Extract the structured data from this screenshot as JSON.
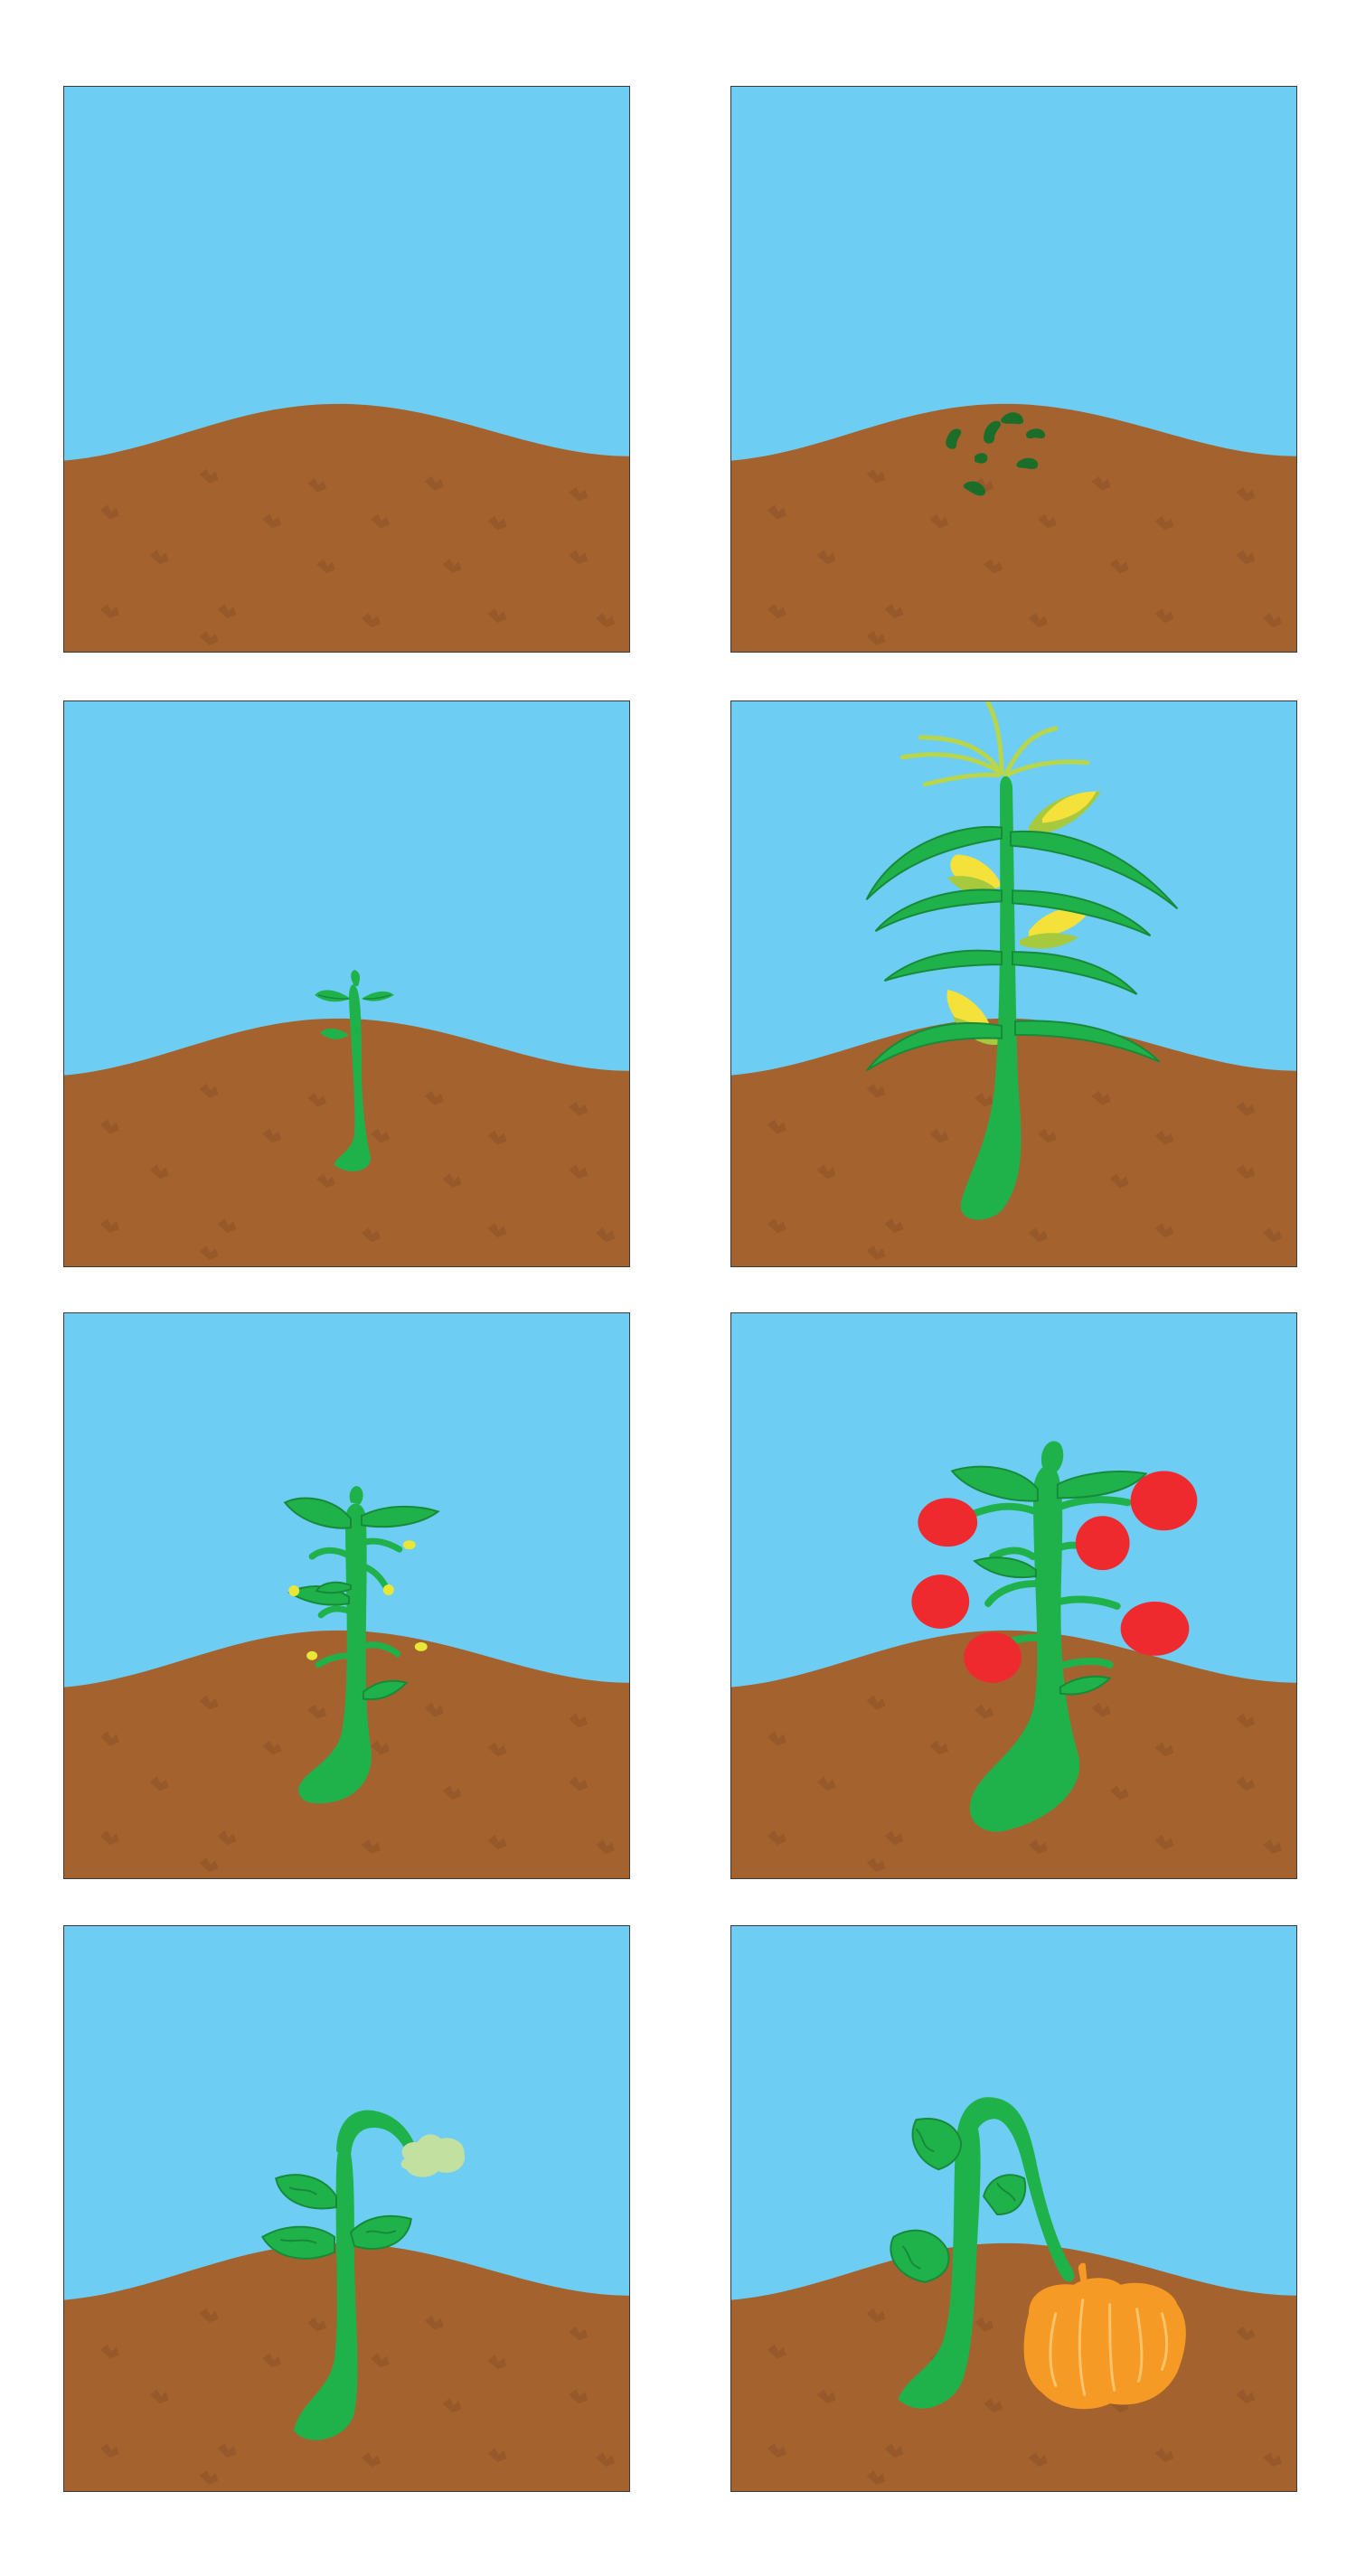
{
  "colors": {
    "sky": "#6ecdf2",
    "soil": "#a4622f",
    "soil_mark": "#8e5226",
    "stem_green": "#20b24a",
    "leaf_dark": "#178a3a",
    "seed_green": "#1a6e2a",
    "corn_yellow": "#f4e23a",
    "husk_green": "#a6c93e",
    "tassel": "#b8d64b",
    "tomato_red": "#ee2a2f",
    "bud_yellow": "#e8e637",
    "pale_bud": "#c2e0a0",
    "pumpkin_orange": "#f59a25",
    "pumpkin_line": "#fbc36a"
  },
  "panels": [
    {
      "stage": "empty-soil"
    },
    {
      "stage": "seeds"
    },
    {
      "stage": "sprout"
    },
    {
      "stage": "corn"
    },
    {
      "stage": "flowering"
    },
    {
      "stage": "tomato"
    },
    {
      "stage": "pumpkin-bud"
    },
    {
      "stage": "pumpkin"
    }
  ]
}
